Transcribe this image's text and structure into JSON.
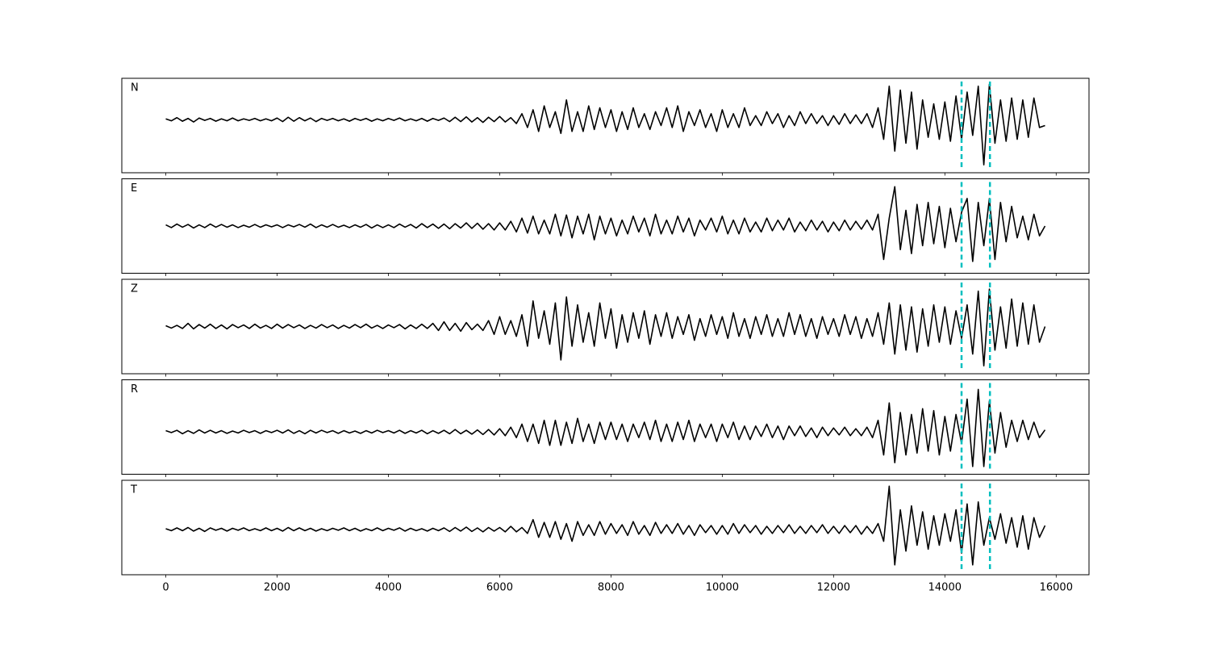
{
  "chart_data": {
    "type": "line",
    "color": "#000000",
    "x": [
      0,
      100,
      200,
      300,
      400,
      500,
      600,
      700,
      800,
      900,
      1000,
      1100,
      1200,
      1300,
      1400,
      1500,
      1600,
      1700,
      1800,
      1900,
      2000,
      2100,
      2200,
      2300,
      2400,
      2500,
      2600,
      2700,
      2800,
      2900,
      3000,
      3100,
      3200,
      3300,
      3400,
      3500,
      3600,
      3700,
      3800,
      3900,
      4000,
      4100,
      4200,
      4300,
      4400,
      4500,
      4600,
      4700,
      4800,
      4900,
      5000,
      5100,
      5200,
      5300,
      5400,
      5500,
      5600,
      5700,
      5800,
      5900,
      6000,
      6100,
      6200,
      6300,
      6400,
      6500,
      6600,
      6700,
      6800,
      6900,
      7000,
      7100,
      7200,
      7300,
      7400,
      7500,
      7600,
      7700,
      7800,
      7900,
      8000,
      8100,
      8200,
      8300,
      8400,
      8500,
      8600,
      8700,
      8800,
      8900,
      9000,
      9100,
      9200,
      9300,
      9400,
      9500,
      9600,
      9700,
      9800,
      9900,
      10000,
      10100,
      10200,
      10300,
      10400,
      10500,
      10600,
      10700,
      10800,
      10900,
      11000,
      11100,
      11200,
      11300,
      11400,
      11500,
      11600,
      11700,
      11800,
      11900,
      12000,
      12100,
      12200,
      12300,
      12400,
      12500,
      12600,
      12700,
      12800,
      12900,
      13000,
      13100,
      13200,
      13300,
      13400,
      13500,
      13600,
      13700,
      13800,
      13900,
      14000,
      14100,
      14200,
      14300,
      14400,
      14500,
      14600,
      14700,
      14800,
      14900,
      15000,
      15100,
      15200,
      15300,
      15400,
      15500,
      15600,
      15700,
      15800
    ],
    "xlim": [
      -790,
      16590
    ],
    "xticks": [
      0,
      2000,
      4000,
      6000,
      8000,
      10000,
      12000,
      14000,
      16000
    ],
    "vlines": [
      14300,
      14810
    ],
    "vline_color": "#00bfbf",
    "panels": [
      {
        "label": "N",
        "ylim": [
          -1.35,
          1.05
        ],
        "values": [
          0.02,
          -0.03,
          0.05,
          -0.04,
          0.03,
          -0.06,
          0.04,
          -0.02,
          0.03,
          -0.04,
          0.02,
          -0.03,
          0.04,
          -0.03,
          0.02,
          -0.02,
          0.03,
          -0.03,
          0.02,
          -0.03,
          0.04,
          -0.05,
          0.06,
          -0.04,
          0.05,
          -0.03,
          0.04,
          -0.05,
          0.03,
          -0.02,
          0.03,
          -0.03,
          0.02,
          -0.04,
          0.03,
          -0.02,
          0.03,
          -0.04,
          0.02,
          -0.03,
          0.03,
          -0.02,
          0.04,
          -0.03,
          0.02,
          -0.03,
          0.03,
          -0.04,
          0.03,
          -0.02,
          0.04,
          -0.05,
          0.06,
          -0.05,
          0.07,
          -0.06,
          0.05,
          -0.07,
          0.06,
          -0.05,
          0.08,
          -0.06,
          0.05,
          -0.1,
          0.15,
          -0.2,
          0.25,
          -0.3,
          0.35,
          -0.2,
          0.2,
          -0.35,
          0.5,
          -0.3,
          0.2,
          -0.3,
          0.35,
          -0.25,
          0.3,
          -0.2,
          0.25,
          -0.3,
          0.2,
          -0.25,
          0.3,
          -0.2,
          0.15,
          -0.25,
          0.2,
          -0.15,
          0.3,
          -0.2,
          0.35,
          -0.3,
          0.2,
          -0.15,
          0.25,
          -0.2,
          0.15,
          -0.3,
          0.25,
          -0.2,
          0.15,
          -0.2,
          0.3,
          -0.15,
          0.1,
          -0.15,
          0.2,
          -0.1,
          0.15,
          -0.2,
          0.1,
          -0.15,
          0.2,
          -0.1,
          0.15,
          -0.1,
          0.1,
          -0.15,
          0.1,
          -0.12,
          0.15,
          -0.1,
          0.12,
          -0.1,
          0.15,
          -0.2,
          0.3,
          -0.5,
          0.85,
          -0.8,
          0.75,
          -0.6,
          0.7,
          -0.75,
          0.5,
          -0.45,
          0.4,
          -0.5,
          0.45,
          -0.55,
          0.6,
          -0.5,
          0.7,
          -0.4,
          0.85,
          -1.15,
          0.9,
          -0.6,
          0.5,
          -0.55,
          0.55,
          -0.5,
          0.5,
          -0.45,
          0.55,
          -0.2,
          -0.15
        ]
      },
      {
        "label": "E",
        "ylim": [
          -1.2,
          1.2
        ],
        "values": [
          0.03,
          -0.04,
          0.05,
          -0.03,
          0.04,
          -0.05,
          0.03,
          -0.04,
          0.05,
          -0.03,
          0.04,
          -0.03,
          0.03,
          -0.04,
          0.02,
          -0.03,
          0.04,
          -0.03,
          0.03,
          -0.02,
          0.03,
          -0.04,
          0.03,
          -0.02,
          0.04,
          -0.03,
          0.05,
          -0.04,
          0.03,
          -0.03,
          0.04,
          -0.03,
          0.02,
          -0.04,
          0.03,
          -0.03,
          0.04,
          -0.05,
          0.03,
          -0.04,
          0.03,
          -0.04,
          0.05,
          -0.03,
          0.04,
          -0.05,
          0.06,
          -0.04,
          0.05,
          -0.06,
          0.05,
          -0.07,
          0.06,
          -0.05,
          0.08,
          -0.06,
          0.07,
          -0.08,
          0.06,
          -0.1,
          0.08,
          -0.1,
          0.12,
          -0.15,
          0.2,
          -0.18,
          0.25,
          -0.2,
          0.15,
          -0.2,
          0.3,
          -0.25,
          0.28,
          -0.3,
          0.25,
          -0.2,
          0.3,
          -0.35,
          0.25,
          -0.2,
          0.2,
          -0.25,
          0.15,
          -0.2,
          0.25,
          -0.15,
          0.2,
          -0.25,
          0.3,
          -0.2,
          0.15,
          -0.2,
          0.25,
          -0.15,
          0.2,
          -0.25,
          0.15,
          -0.1,
          0.2,
          -0.15,
          0.25,
          -0.2,
          0.15,
          -0.2,
          0.2,
          -0.15,
          0.1,
          -0.15,
          0.2,
          -0.12,
          0.15,
          -0.1,
          0.2,
          -0.15,
          0.1,
          -0.12,
          0.15,
          -0.1,
          0.12,
          -0.15,
          0.1,
          -0.12,
          0.15,
          -0.1,
          0.12,
          -0.08,
          0.15,
          -0.1,
          0.3,
          -0.85,
          0.2,
          1.0,
          -0.6,
          0.4,
          -0.7,
          0.55,
          -0.5,
          0.6,
          -0.45,
          0.5,
          -0.55,
          0.45,
          -0.4,
          0.35,
          0.7,
          -0.9,
          0.6,
          -0.5,
          0.7,
          -0.85,
          0.6,
          -0.4,
          0.5,
          -0.3,
          0.25,
          -0.35,
          0.3,
          -0.25,
          0.0
        ]
      },
      {
        "label": "Z",
        "ylim": [
          -1.2,
          1.2
        ],
        "values": [
          0.02,
          -0.04,
          0.03,
          -0.05,
          0.08,
          -0.06,
          0.05,
          -0.04,
          0.06,
          -0.05,
          0.04,
          -0.06,
          0.05,
          -0.03,
          0.04,
          -0.05,
          0.06,
          -0.04,
          0.03,
          -0.05,
          0.06,
          -0.04,
          0.05,
          -0.03,
          0.04,
          -0.05,
          0.03,
          -0.04,
          0.05,
          -0.03,
          0.04,
          -0.05,
          0.03,
          -0.04,
          0.05,
          -0.03,
          0.06,
          -0.04,
          0.03,
          -0.05,
          0.04,
          -0.03,
          0.05,
          -0.06,
          0.04,
          -0.05,
          0.06,
          -0.05,
          0.08,
          -0.1,
          0.12,
          -0.1,
          0.08,
          -0.12,
          0.1,
          -0.08,
          0.06,
          -0.1,
          0.15,
          -0.2,
          0.25,
          -0.2,
          0.15,
          -0.25,
          0.3,
          -0.5,
          0.65,
          -0.3,
          0.4,
          -0.45,
          0.6,
          -0.85,
          0.75,
          -0.5,
          0.55,
          -0.4,
          0.35,
          -0.5,
          0.6,
          -0.3,
          0.45,
          -0.55,
          0.3,
          -0.4,
          0.35,
          -0.3,
          0.4,
          -0.45,
          0.3,
          -0.25,
          0.35,
          -0.3,
          0.25,
          -0.2,
          0.3,
          -0.35,
          0.2,
          -0.25,
          0.3,
          -0.2,
          0.25,
          -0.3,
          0.35,
          -0.25,
          0.2,
          -0.3,
          0.25,
          -0.2,
          0.3,
          -0.25,
          0.2,
          -0.25,
          0.35,
          -0.2,
          0.3,
          -0.25,
          0.2,
          -0.3,
          0.25,
          -0.2,
          0.2,
          -0.25,
          0.3,
          -0.2,
          0.25,
          -0.3,
          0.2,
          -0.25,
          0.35,
          -0.45,
          0.6,
          -0.7,
          0.55,
          -0.6,
          0.5,
          -0.65,
          0.45,
          -0.5,
          0.55,
          -0.4,
          0.5,
          -0.45,
          0.4,
          -0.3,
          0.55,
          -0.7,
          0.9,
          -1.0,
          0.95,
          -0.6,
          0.5,
          -0.55,
          0.7,
          -0.5,
          0.6,
          -0.45,
          0.55,
          -0.4,
          0.0
        ]
      },
      {
        "label": "R",
        "ylim": [
          -1.1,
          1.35
        ],
        "values": [
          0.03,
          -0.02,
          0.04,
          -0.05,
          0.03,
          -0.04,
          0.05,
          -0.03,
          0.04,
          -0.03,
          0.03,
          -0.04,
          0.02,
          -0.03,
          0.04,
          -0.02,
          0.03,
          -0.04,
          0.03,
          -0.02,
          0.04,
          -0.03,
          0.05,
          -0.04,
          0.03,
          -0.05,
          0.04,
          -0.03,
          0.04,
          -0.02,
          0.03,
          -0.04,
          0.03,
          -0.03,
          0.02,
          -0.04,
          0.03,
          -0.03,
          0.04,
          -0.02,
          0.03,
          -0.03,
          0.04,
          -0.04,
          0.03,
          -0.03,
          0.04,
          -0.05,
          0.03,
          -0.04,
          0.04,
          -0.05,
          0.06,
          -0.05,
          0.04,
          -0.06,
          0.05,
          -0.07,
          0.06,
          -0.08,
          0.08,
          -0.1,
          0.12,
          -0.15,
          0.2,
          -0.25,
          0.2,
          -0.3,
          0.3,
          -0.35,
          0.3,
          -0.35,
          0.25,
          -0.3,
          0.35,
          -0.25,
          0.2,
          -0.3,
          0.25,
          -0.2,
          0.25,
          -0.2,
          0.2,
          -0.25,
          0.2,
          -0.15,
          0.25,
          -0.2,
          0.3,
          -0.25,
          0.2,
          -0.25,
          0.25,
          -0.2,
          0.3,
          -0.25,
          0.2,
          -0.15,
          0.2,
          -0.25,
          0.2,
          -0.15,
          0.25,
          -0.2,
          0.15,
          -0.2,
          0.15,
          -0.12,
          0.2,
          -0.15,
          0.15,
          -0.2,
          0.15,
          -0.1,
          0.15,
          -0.12,
          0.1,
          -0.15,
          0.12,
          -0.1,
          0.1,
          -0.08,
          0.12,
          -0.1,
          0.08,
          -0.1,
          0.12,
          -0.15,
          0.3,
          -0.6,
          0.75,
          -0.8,
          0.5,
          -0.6,
          0.45,
          -0.55,
          0.6,
          -0.5,
          0.55,
          -0.6,
          0.4,
          -0.5,
          0.45,
          -0.3,
          0.85,
          -0.9,
          1.1,
          -0.9,
          0.8,
          -0.55,
          0.5,
          -0.4,
          0.3,
          -0.25,
          0.3,
          -0.2,
          0.25,
          -0.15,
          0.05
        ]
      },
      {
        "label": "T",
        "ylim": [
          -1.15,
          1.25
        ],
        "values": [
          0.02,
          -0.03,
          0.04,
          -0.03,
          0.05,
          -0.04,
          0.03,
          -0.05,
          0.04,
          -0.02,
          0.03,
          -0.04,
          0.03,
          -0.02,
          0.04,
          -0.03,
          0.02,
          -0.03,
          0.04,
          -0.03,
          0.03,
          -0.04,
          0.05,
          -0.03,
          0.04,
          -0.03,
          0.03,
          -0.04,
          0.02,
          -0.03,
          0.03,
          -0.02,
          0.04,
          -0.03,
          0.03,
          -0.04,
          0.02,
          -0.03,
          0.04,
          -0.03,
          0.03,
          -0.02,
          0.04,
          -0.04,
          0.03,
          -0.03,
          0.02,
          -0.04,
          0.03,
          -0.03,
          0.04,
          -0.05,
          0.05,
          -0.04,
          0.06,
          -0.05,
          0.04,
          -0.06,
          0.05,
          -0.04,
          0.05,
          -0.06,
          0.08,
          -0.06,
          0.05,
          -0.1,
          0.25,
          -0.2,
          0.18,
          -0.2,
          0.2,
          -0.25,
          0.15,
          -0.3,
          0.2,
          -0.15,
          0.12,
          -0.15,
          0.2,
          -0.12,
          0.15,
          -0.1,
          0.12,
          -0.15,
          0.2,
          -0.12,
          0.1,
          -0.15,
          0.18,
          -0.1,
          0.12,
          -0.1,
          0.15,
          -0.12,
          0.1,
          -0.15,
          0.12,
          -0.08,
          0.1,
          -0.12,
          0.1,
          -0.12,
          0.15,
          -0.1,
          0.12,
          -0.08,
          0.1,
          -0.12,
          0.08,
          -0.1,
          0.1,
          -0.08,
          0.12,
          -0.1,
          0.08,
          -0.1,
          0.1,
          -0.08,
          0.12,
          -0.1,
          0.08,
          -0.1,
          0.1,
          -0.08,
          0.1,
          -0.12,
          0.08,
          -0.1,
          0.15,
          -0.3,
          1.1,
          -0.9,
          0.5,
          -0.55,
          0.6,
          -0.4,
          0.45,
          -0.5,
          0.35,
          -0.4,
          0.4,
          -0.3,
          0.5,
          -0.6,
          0.65,
          -0.9,
          0.7,
          -0.4,
          0.3,
          -0.25,
          0.4,
          -0.35,
          0.3,
          -0.45,
          0.35,
          -0.5,
          0.3,
          -0.2,
          0.1
        ]
      }
    ]
  }
}
